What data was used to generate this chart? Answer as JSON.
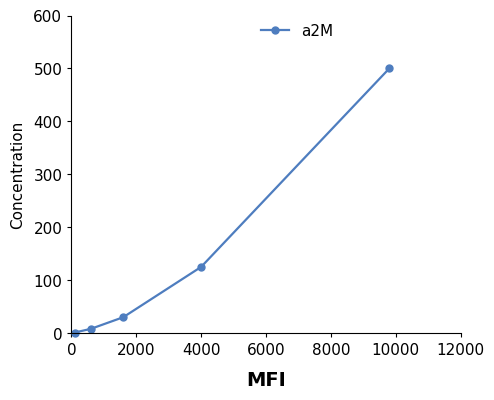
{
  "x": [
    100,
    600,
    1600,
    4000,
    9800
  ],
  "y": [
    1,
    8,
    30,
    125,
    500
  ],
  "line_color": "#4E7DBF",
  "marker": "o",
  "marker_size": 5,
  "legend_label": "a2M",
  "xlabel": "MFI",
  "ylabel": "Concentration",
  "xlabel_fontsize": 14,
  "ylabel_fontsize": 11,
  "xlim": [
    0,
    12000
  ],
  "ylim": [
    0,
    600
  ],
  "xticks": [
    0,
    2000,
    4000,
    6000,
    8000,
    10000,
    12000
  ],
  "yticks": [
    0,
    100,
    200,
    300,
    400,
    500,
    600
  ],
  "tick_fontsize": 11,
  "legend_fontsize": 11,
  "background_color": "#ffffff"
}
